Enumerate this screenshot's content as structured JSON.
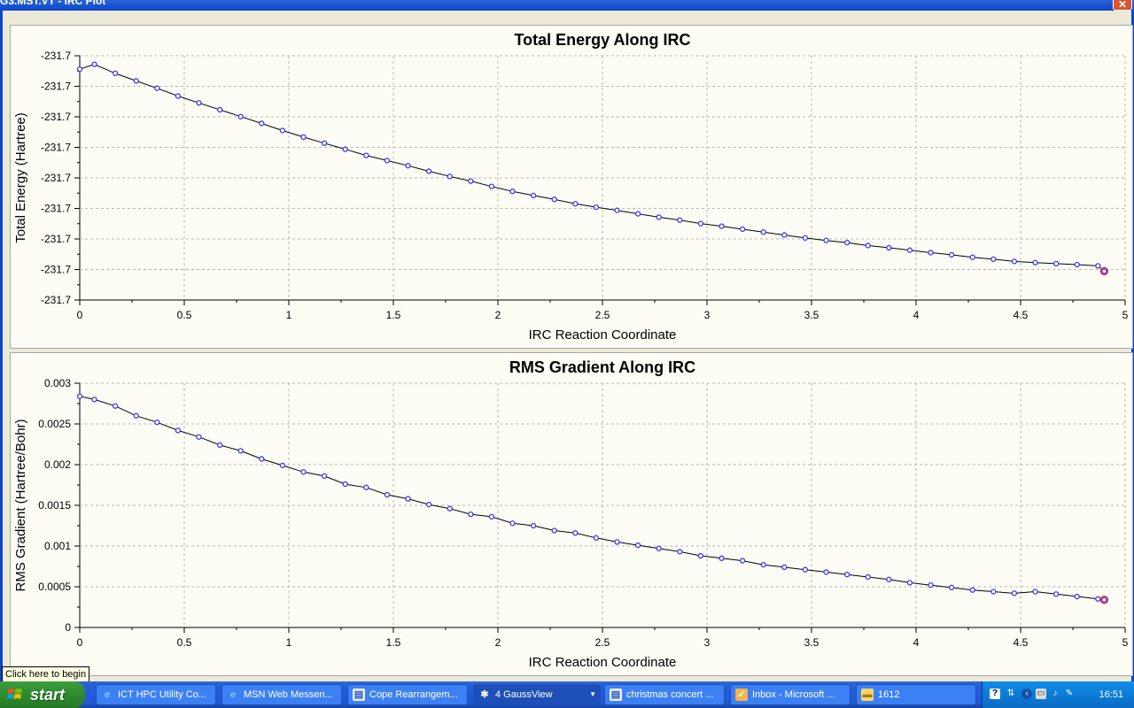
{
  "window": {
    "title": "G3.MST.VT - IRC Plot",
    "close_label": "✕"
  },
  "charts": [
    {
      "type": "line",
      "title": "Total Energy Along IRC",
      "xlabel": "IRC Reaction Coordinate",
      "ylabel": "Total Energy (Hartree)",
      "xlim": [
        0,
        5
      ],
      "x_ticks": [
        "0",
        "0.5",
        "1",
        "1.5",
        "2",
        "2.5",
        "3",
        "3.5",
        "4",
        "4.5",
        "5"
      ],
      "y_ticks": [
        "-231.7",
        "-231.7",
        "-231.7",
        "-231.7",
        "-231.7",
        "-231.7",
        "-231.7",
        "-231.7",
        "-231.7"
      ],
      "y_tick_fractions": [
        0,
        0.125,
        0.25,
        0.375,
        0.5,
        0.625,
        0.75,
        0.875,
        1
      ],
      "grid": true,
      "line_color": "#000000",
      "marker_color": "#3a3af0",
      "highlight_color": "#e0303a",
      "x": [
        0,
        0.07,
        0.17,
        0.27,
        0.37,
        0.47,
        0.57,
        0.67,
        0.77,
        0.87,
        0.97,
        1.07,
        1.17,
        1.27,
        1.37,
        1.47,
        1.57,
        1.67,
        1.77,
        1.87,
        1.97,
        2.07,
        2.17,
        2.27,
        2.37,
        2.47,
        2.57,
        2.67,
        2.77,
        2.87,
        2.97,
        3.07,
        3.17,
        3.27,
        3.37,
        3.47,
        3.57,
        3.67,
        3.77,
        3.87,
        3.97,
        4.07,
        4.17,
        4.27,
        4.37,
        4.47,
        4.57,
        4.67,
        4.77,
        4.87,
        4.9
      ],
      "y_fraction": [
        0.945,
        0.965,
        0.928,
        0.897,
        0.867,
        0.835,
        0.807,
        0.779,
        0.751,
        0.723,
        0.694,
        0.667,
        0.642,
        0.617,
        0.592,
        0.571,
        0.55,
        0.527,
        0.506,
        0.487,
        0.465,
        0.445,
        0.428,
        0.412,
        0.394,
        0.38,
        0.367,
        0.353,
        0.339,
        0.327,
        0.313,
        0.302,
        0.29,
        0.278,
        0.266,
        0.254,
        0.244,
        0.235,
        0.223,
        0.214,
        0.204,
        0.194,
        0.185,
        0.175,
        0.167,
        0.158,
        0.153,
        0.149,
        0.145,
        0.14,
        0.118
      ]
    },
    {
      "type": "line",
      "title": "RMS Gradient Along IRC",
      "xlabel": "IRC Reaction Coordinate",
      "ylabel": "RMS Gradient (Hartree/Bohr)",
      "xlim": [
        0,
        5
      ],
      "ylim": [
        0,
        0.003
      ],
      "x_ticks": [
        "0",
        "0.5",
        "1",
        "1.5",
        "2",
        "2.5",
        "3",
        "3.5",
        "4",
        "4.5",
        "5"
      ],
      "y_ticks": [
        "0",
        "0.0005",
        "0.001",
        "0.0015",
        "0.002",
        "0.0025",
        "0.003"
      ],
      "y_tick_values": [
        0,
        0.0005,
        0.001,
        0.0015,
        0.002,
        0.0025,
        0.003
      ],
      "grid": true,
      "line_color": "#000000",
      "marker_color": "#3a3af0",
      "highlight_color": "#e0303a",
      "x": [
        0,
        0.07,
        0.17,
        0.27,
        0.37,
        0.47,
        0.57,
        0.67,
        0.77,
        0.87,
        0.97,
        1.07,
        1.17,
        1.27,
        1.37,
        1.47,
        1.57,
        1.67,
        1.77,
        1.87,
        1.97,
        2.07,
        2.17,
        2.27,
        2.37,
        2.47,
        2.57,
        2.67,
        2.77,
        2.87,
        2.97,
        3.07,
        3.17,
        3.27,
        3.37,
        3.47,
        3.57,
        3.67,
        3.77,
        3.87,
        3.97,
        4.07,
        4.17,
        4.27,
        4.37,
        4.47,
        4.57,
        4.67,
        4.77,
        4.87,
        4.9
      ],
      "y": [
        0.00284,
        0.0028,
        0.00272,
        0.0026,
        0.00252,
        0.00242,
        0.00234,
        0.00224,
        0.00217,
        0.00207,
        0.00199,
        0.00191,
        0.00186,
        0.00176,
        0.00172,
        0.00163,
        0.00158,
        0.00151,
        0.00146,
        0.00139,
        0.00136,
        0.00128,
        0.00125,
        0.00119,
        0.00116,
        0.0011,
        0.00105,
        0.00101,
        0.00097,
        0.00093,
        0.00088,
        0.00085,
        0.00082,
        0.00077,
        0.00074,
        0.00071,
        0.00068,
        0.00065,
        0.00062,
        0.00059,
        0.00055,
        0.00052,
        0.00049,
        0.00046,
        0.00044,
        0.00042,
        0.00044,
        0.00041,
        0.00038,
        0.00035,
        0.00034
      ]
    }
  ],
  "tooltip": {
    "text": "Click here to begin"
  },
  "taskbar": {
    "start_label": "start",
    "tasks": [
      {
        "label": "ICT HPC Utility Co...",
        "icon": "ie-icon"
      },
      {
        "label": "MSN Web Messen...",
        "icon": "ie-icon"
      },
      {
        "label": "Cope Rearrangem...",
        "icon": "doc-icon"
      },
      {
        "label": "4 GaussView",
        "icon": "gaussview-icon"
      },
      {
        "label": "christmas concert ...",
        "icon": "doc-icon"
      },
      {
        "label": "Inbox - Microsoft ...",
        "icon": "outlook-icon"
      },
      {
        "label": "1612",
        "icon": "folder-icon"
      }
    ],
    "clock": "16:51"
  }
}
